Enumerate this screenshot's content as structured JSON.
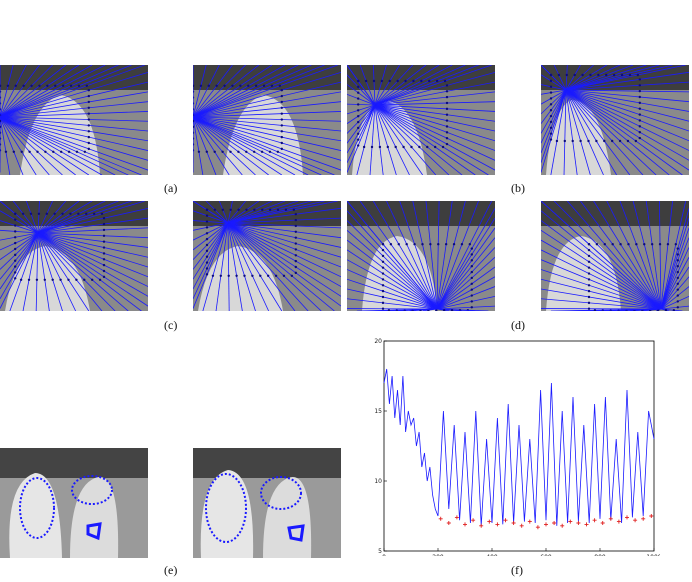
{
  "figure": {
    "captions": {
      "a": "(a)",
      "b": "(b)",
      "c": "(c)",
      "d": "(d)",
      "e": "(e)",
      "f": "(f)"
    },
    "panels": [
      {
        "id": "a-left",
        "content": "grayscale photo of mannequin heads with blue epipolar lines",
        "line_color": "#1a1aff"
      },
      {
        "id": "a-right",
        "content": "grayscale photo of mannequin heads with blue epipolar lines",
        "line_color": "#1a1aff"
      },
      {
        "id": "b-left",
        "content": "grayscale photo of mannequin heads with blue epipolar lines",
        "line_color": "#1a1aff"
      },
      {
        "id": "b-right",
        "content": "grayscale photo of mannequin heads with blue epipolar lines",
        "line_color": "#1a1aff"
      },
      {
        "id": "c-left",
        "content": "grayscale photo of mannequin heads with blue epipolar lines",
        "line_color": "#1a1aff"
      },
      {
        "id": "c-right",
        "content": "grayscale photo of mannequin heads with blue epipolar lines",
        "line_color": "#1a1aff"
      },
      {
        "id": "d-left",
        "content": "grayscale photo of mannequin heads with blue epipolar lines",
        "line_color": "#1a1aff"
      },
      {
        "id": "d-right",
        "content": "grayscale photo of mannequin heads with blue epipolar lines",
        "line_color": "#1a1aff"
      },
      {
        "id": "e-left",
        "content": "grayscale photo of mannequins with blue tracked contour points",
        "line_color": "#1a1aff"
      },
      {
        "id": "e-right",
        "content": "grayscale photo of mannequins with blue tracked contour points",
        "line_color": "#1a1aff"
      }
    ]
  },
  "chart_data": {
    "type": "line",
    "title": "",
    "xlabel": "",
    "ylabel": "",
    "xlim": [
      0,
      1000
    ],
    "ylim": [
      5,
      20
    ],
    "xticks": [
      0,
      200,
      400,
      600,
      800,
      1000
    ],
    "yticks": [
      5,
      10,
      15,
      20
    ],
    "series": [
      {
        "style": "line",
        "color": "#1a1aff",
        "x": [
          0,
          10,
          20,
          30,
          40,
          50,
          60,
          70,
          80,
          90,
          100,
          110,
          120,
          130,
          140,
          150,
          160,
          170,
          180,
          190,
          200,
          220,
          240,
          260,
          280,
          300,
          320,
          340,
          360,
          380,
          400,
          420,
          440,
          460,
          480,
          500,
          520,
          540,
          560,
          580,
          600,
          620,
          640,
          660,
          680,
          700,
          720,
          740,
          760,
          780,
          800,
          820,
          840,
          860,
          880,
          900,
          920,
          940,
          960,
          980,
          1000
        ],
        "y": [
          17,
          18,
          15.5,
          17.5,
          14.5,
          16.5,
          14,
          17.5,
          13.5,
          15,
          14,
          14.5,
          12.5,
          13.5,
          11,
          12,
          10,
          11,
          9,
          8,
          7.5,
          15,
          8,
          14,
          7.2,
          13.5,
          7,
          15,
          6.8,
          13,
          7,
          14.5,
          6.9,
          15.5,
          7,
          14,
          7.1,
          13,
          7,
          16.5,
          7.2,
          17,
          6.8,
          15,
          7,
          16,
          7.1,
          14,
          7,
          15.5,
          7.3,
          16,
          7.2,
          13,
          7,
          16.5,
          7.4,
          13.5,
          7.5,
          15,
          13
        ]
      },
      {
        "style": "markers",
        "marker": "+",
        "color": "#e02020",
        "x": [
          210,
          240,
          270,
          300,
          330,
          360,
          390,
          420,
          450,
          480,
          510,
          540,
          570,
          600,
          630,
          660,
          690,
          720,
          750,
          780,
          810,
          840,
          870,
          900,
          930,
          960,
          990
        ],
        "y": [
          7.3,
          7.0,
          7.4,
          6.9,
          7.2,
          6.8,
          7.1,
          6.9,
          7.2,
          7.0,
          6.8,
          7.1,
          6.7,
          6.9,
          7.0,
          6.8,
          7.1,
          7.0,
          6.9,
          7.2,
          7.0,
          7.3,
          7.1,
          7.4,
          7.2,
          7.3,
          7.5
        ]
      }
    ]
  }
}
